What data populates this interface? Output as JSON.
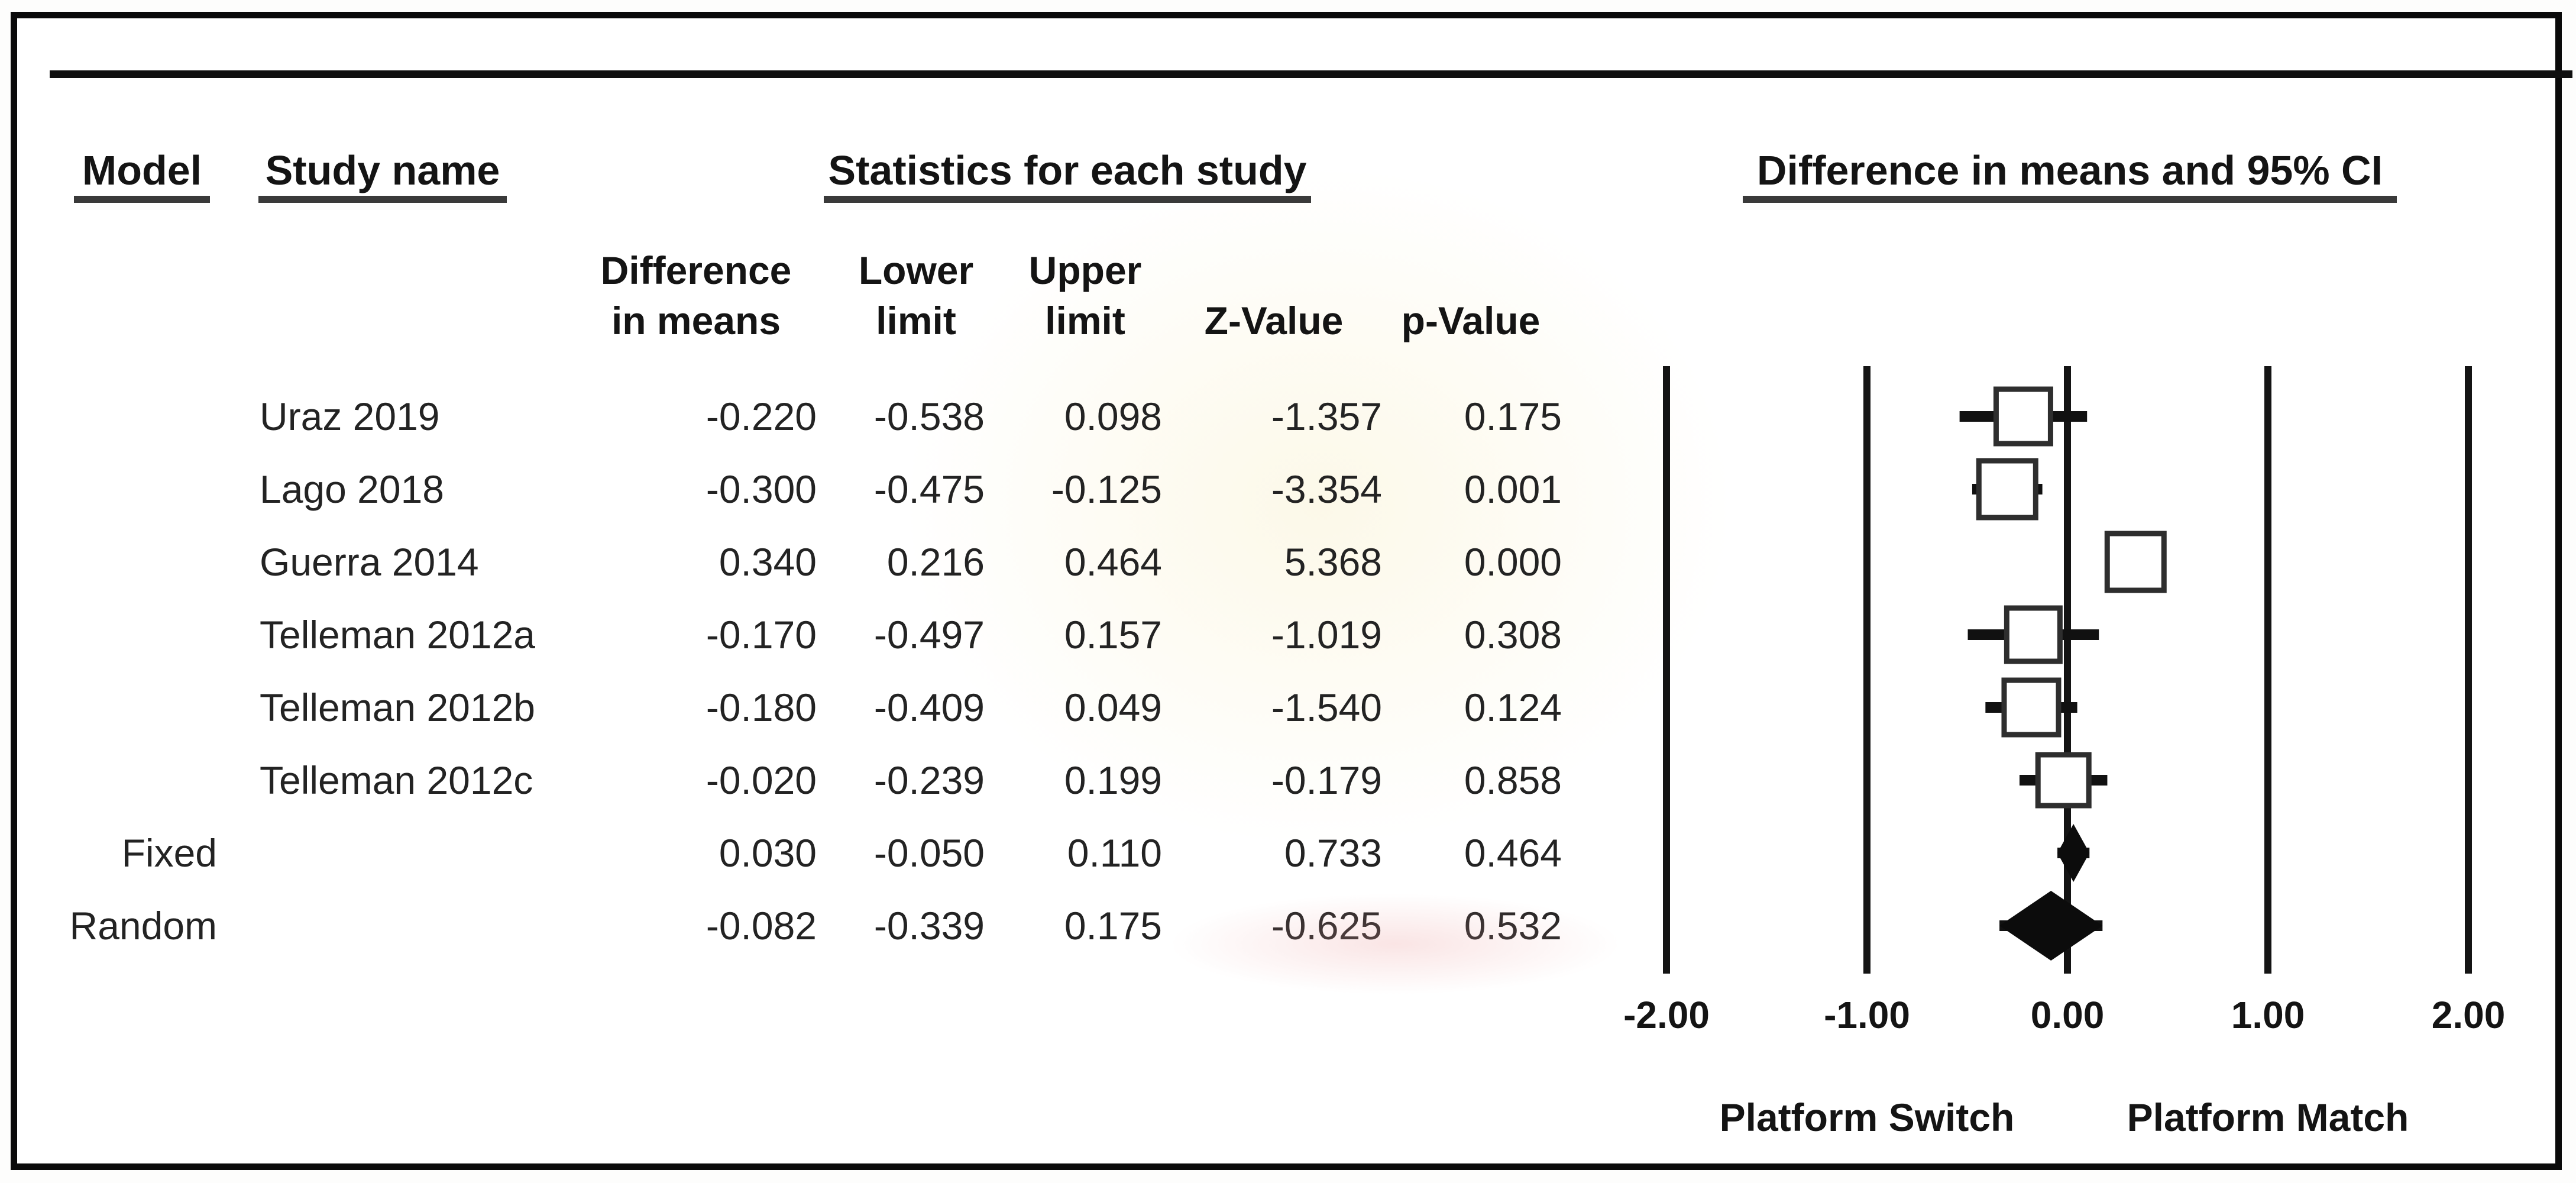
{
  "figure": {
    "headers": {
      "model": "Model",
      "study": "Study name",
      "stats_group": "Statistics for each study",
      "ci_group": "Difference in means and 95% CI",
      "col_diff_line1": "Difference",
      "col_diff_line2": "in means",
      "col_lower_line1": "Lower",
      "col_lower_line2": "limit",
      "col_upper_line1": "Upper",
      "col_upper_line2": "limit",
      "col_z": "Z-Value",
      "col_p": "p-Value"
    },
    "rows": [
      {
        "model": "",
        "study": "Uraz 2019",
        "diff": "-0.220",
        "lower": "-0.538",
        "upper": "0.098",
        "z": "-1.357",
        "p": "0.175"
      },
      {
        "model": "",
        "study": "Lago 2018",
        "diff": "-0.300",
        "lower": "-0.475",
        "upper": "-0.125",
        "z": "-3.354",
        "p": "0.001"
      },
      {
        "model": "",
        "study": "Guerra 2014",
        "diff": "0.340",
        "lower": "0.216",
        "upper": "0.464",
        "z": "5.368",
        "p": "0.000"
      },
      {
        "model": "",
        "study": "Telleman 2012a",
        "diff": "-0.170",
        "lower": "-0.497",
        "upper": "0.157",
        "z": "-1.019",
        "p": "0.308"
      },
      {
        "model": "",
        "study": "Telleman 2012b",
        "diff": "-0.180",
        "lower": "-0.409",
        "upper": "0.049",
        "z": "-1.540",
        "p": "0.124"
      },
      {
        "model": "",
        "study": "Telleman 2012c",
        "diff": "-0.020",
        "lower": "-0.239",
        "upper": "0.199",
        "z": "-0.179",
        "p": "0.858"
      },
      {
        "model": "Fixed",
        "study": "",
        "diff": "0.030",
        "lower": "-0.050",
        "upper": "0.110",
        "z": "0.733",
        "p": "0.464"
      },
      {
        "model": "Random",
        "study": "",
        "diff": "-0.082",
        "lower": "-0.339",
        "upper": "0.175",
        "z": "-0.625",
        "p": "0.532"
      }
    ]
  },
  "chart_data": {
    "type": "scatter",
    "subtype": "forest-plot",
    "title": "Difference in means and 95% CI",
    "xlim": [
      -2,
      2
    ],
    "ticks": [
      -2,
      -1,
      0,
      1,
      2
    ],
    "tick_labels": [
      "-2.00",
      "-1.00",
      "0.00",
      "1.00",
      "2.00"
    ],
    "xlabel_left": "Platform Switch",
    "xlabel_right": "Platform Match",
    "legend_position": "none",
    "grid": "vertical-lines-at-ticks",
    "studies": [
      {
        "name": "Uraz 2019",
        "mean": -0.22,
        "lower": -0.538,
        "upper": 0.098,
        "marker": "square",
        "size": 92
      },
      {
        "name": "Lago 2018",
        "mean": -0.3,
        "lower": -0.475,
        "upper": -0.125,
        "marker": "square",
        "size": 96
      },
      {
        "name": "Guerra 2014",
        "mean": 0.34,
        "lower": 0.216,
        "upper": 0.464,
        "marker": "square",
        "size": 96
      },
      {
        "name": "Telleman 2012a",
        "mean": -0.17,
        "lower": -0.497,
        "upper": 0.157,
        "marker": "square",
        "size": 90
      },
      {
        "name": "Telleman 2012b",
        "mean": -0.18,
        "lower": -0.409,
        "upper": 0.049,
        "marker": "square",
        "size": 92
      },
      {
        "name": "Telleman 2012c",
        "mean": -0.02,
        "lower": -0.239,
        "upper": 0.199,
        "marker": "square",
        "size": 86
      },
      {
        "name": "Fixed",
        "mean": 0.03,
        "lower": -0.05,
        "upper": 0.11,
        "marker": "diamond",
        "size": 98
      },
      {
        "name": "Random",
        "mean": -0.082,
        "lower": -0.339,
        "upper": 0.175,
        "marker": "diamond",
        "size": 118
      }
    ]
  },
  "colors": {
    "ink": "#1b1b1b",
    "frame": "#0a0a0a",
    "gridline": "#141414",
    "square_fill": "#ffffff",
    "square_stroke": "#2e2e2e",
    "diamond_fill": "#0c0c0c"
  }
}
